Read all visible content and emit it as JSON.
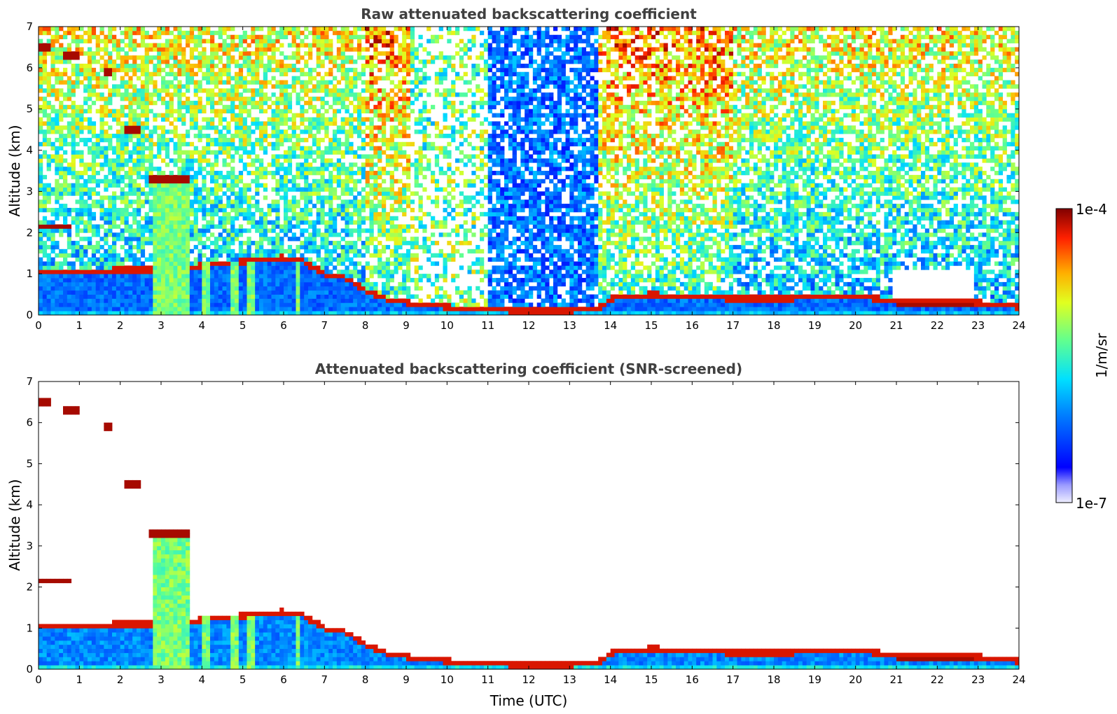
{
  "chart_data": [
    {
      "type": "heatmap",
      "title": "Raw attenuated backscattering coefficient",
      "xlabel": "",
      "ylabel": "Altitude (km)",
      "x_ticks": [
        "0",
        "1",
        "2",
        "3",
        "4",
        "5",
        "6",
        "7",
        "8",
        "9",
        "10",
        "11",
        "12",
        "13",
        "14",
        "15",
        "16",
        "17",
        "18",
        "19",
        "20",
        "21",
        "22",
        "23",
        "24"
      ],
      "y_ticks": [
        "0",
        "1",
        "2",
        "3",
        "4",
        "5",
        "6",
        "7"
      ],
      "xlim": [
        0,
        24
      ],
      "ylim": [
        0,
        7
      ],
      "colormap": "jet",
      "features": {
        "boundary_layer_top_km": [
          [
            0,
            1.05
          ],
          [
            1,
            1.05
          ],
          [
            2,
            1.1
          ],
          [
            3,
            1.1
          ],
          [
            4,
            1.2
          ],
          [
            5,
            1.3
          ],
          [
            6,
            1.4
          ],
          [
            6.5,
            1.3
          ],
          [
            7,
            1.0
          ],
          [
            7.5,
            0.9
          ],
          [
            8,
            0.6
          ],
          [
            8.5,
            0.4
          ],
          [
            9,
            0.3
          ],
          [
            10,
            0.2
          ],
          [
            11,
            0.12
          ],
          [
            12,
            0.1
          ],
          [
            13,
            0.1
          ],
          [
            13.7,
            0.15
          ],
          [
            14,
            0.4
          ],
          [
            15,
            0.5
          ],
          [
            16,
            0.45
          ],
          [
            17,
            0.4
          ],
          [
            18,
            0.4
          ],
          [
            19,
            0.42
          ],
          [
            20,
            0.45
          ],
          [
            21,
            0.35
          ],
          [
            22,
            0.3
          ],
          [
            23,
            0.3
          ],
          [
            24,
            0.2
          ]
        ],
        "cloud_layers": [
          {
            "t_start": 0.0,
            "t_end": 0.3,
            "alt_km": 6.5
          },
          {
            "t_start": 0.6,
            "t_end": 0.95,
            "alt_km": 6.3
          },
          {
            "t_start": 1.6,
            "t_end": 1.8,
            "alt_km": 5.9
          },
          {
            "t_start": 2.1,
            "t_end": 2.5,
            "alt_km": 4.5
          },
          {
            "t_start": 2.7,
            "t_end": 3.7,
            "alt_km": 3.3
          },
          {
            "t_start": 0.0,
            "t_end": 0.75,
            "alt_km": 2.15
          },
          {
            "t_start": 21.0,
            "t_end": 22.9,
            "alt_km": 0.25
          }
        ],
        "precipitation_columns_h": [
          2.9,
          3.1,
          3.3,
          3.45,
          3.6,
          4.1,
          4.8,
          5.2,
          6.35
        ]
      }
    },
    {
      "type": "heatmap",
      "title": "Attenuated backscattering coefficient (SNR-screened)",
      "xlabel": "Time (UTC)",
      "ylabel": "Altitude (km)",
      "x_ticks": [
        "0",
        "1",
        "2",
        "3",
        "4",
        "5",
        "6",
        "7",
        "8",
        "9",
        "10",
        "11",
        "12",
        "13",
        "14",
        "15",
        "16",
        "17",
        "18",
        "19",
        "20",
        "21",
        "22",
        "23",
        "24"
      ],
      "y_ticks": [
        "0",
        "1",
        "2",
        "3",
        "4",
        "5",
        "6",
        "7"
      ],
      "xlim": [
        0,
        24
      ],
      "ylim": [
        0,
        7
      ],
      "colormap": "jet"
    }
  ],
  "colorbar": {
    "label": "1/m/sr",
    "top_label": "1e-4",
    "bottom_label": "1e-7",
    "scale": "log",
    "range": [
      "1e-7",
      "1e-4"
    ]
  }
}
